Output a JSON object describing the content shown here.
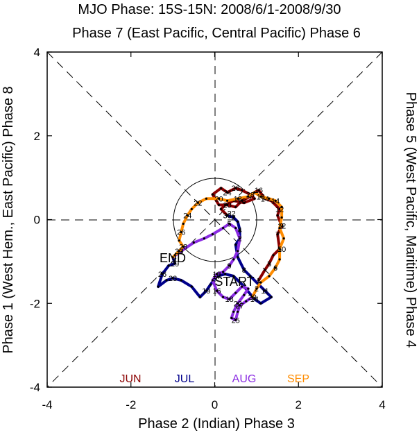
{
  "chart_data": {
    "type": "line",
    "title": "MJO Phase: 15S-15N: 2008/6/1-2008/9/30",
    "top_label": "Phase 7 (East Pacific, Central Pacific) Phase 6",
    "bottom_label": "Phase 2 (Indian) Phase 3",
    "left_label": "Phase 1 (West Hem., East Pacific) Phase 8",
    "right_label": "Phase 5 (West Pacific, Maritime) Phase 4",
    "xlim": [
      -4,
      4
    ],
    "ylim": [
      -4,
      4
    ],
    "x_ticks": [
      "-4",
      "-2",
      "0",
      "2",
      "4"
    ],
    "y_ticks": [
      "-4",
      "-2",
      "0",
      "2",
      "4"
    ],
    "unit_circle_radius": 1,
    "start_label": "START",
    "end_label": "END",
    "series": [
      {
        "name": "JUN",
        "color": "#8b0000",
        "points": [
          [
            1.05,
            -1.45
          ],
          [
            1.2,
            -1.2
          ],
          [
            1.3,
            -1.05
          ],
          [
            1.4,
            -0.85
          ],
          [
            1.55,
            -0.7
          ],
          [
            1.5,
            -0.35
          ],
          [
            1.6,
            -0.15
          ],
          [
            1.5,
            0.1
          ],
          [
            1.55,
            0.25
          ],
          [
            1.35,
            0.45
          ],
          [
            1.2,
            0.5
          ],
          [
            1.05,
            0.7
          ],
          [
            0.95,
            0.65
          ],
          [
            0.85,
            0.55
          ],
          [
            0.65,
            0.45
          ],
          [
            0.5,
            0.3
          ],
          [
            0.3,
            0.35
          ],
          [
            0.1,
            0.35
          ],
          [
            -0.05,
            0.6
          ],
          [
            0.15,
            0.75
          ],
          [
            0.3,
            0.65
          ],
          [
            0.5,
            0.75
          ],
          [
            0.65,
            0.7
          ],
          [
            0.85,
            0.6
          ],
          [
            0.95,
            0.5
          ],
          [
            0.7,
            0.4
          ],
          [
            0.45,
            0.45
          ],
          [
            0.25,
            0.35
          ],
          [
            0.15,
            0.25
          ],
          [
            0.3,
            0.1
          ]
        ],
        "day_labels": [
          [
            1,
            1.05,
            -1.45
          ],
          [
            3,
            1.3,
            -1.05
          ],
          [
            5,
            1.55,
            -0.7
          ],
          [
            7,
            1.5,
            -0.35
          ],
          [
            9,
            1.6,
            -0.15
          ],
          [
            12,
            1.55,
            0.25
          ],
          [
            14,
            1.2,
            0.5
          ],
          [
            16,
            1.05,
            0.7
          ],
          [
            18,
            0.65,
            0.45
          ],
          [
            20,
            0.3,
            0.35
          ],
          [
            22,
            0.4,
            0.15
          ],
          [
            24,
            0.3,
            0.65
          ],
          [
            26,
            0.5,
            0.75
          ],
          [
            28,
            0.85,
            0.6
          ],
          [
            30,
            0.3,
            0.1
          ]
        ]
      },
      {
        "name": "JUL",
        "color": "#00008b",
        "points": [
          [
            0.3,
            0.1
          ],
          [
            0.45,
            0.05
          ],
          [
            0.55,
            -0.05
          ],
          [
            0.6,
            -0.25
          ],
          [
            0.6,
            -0.45
          ],
          [
            0.5,
            -0.6
          ],
          [
            0.55,
            -0.9
          ],
          [
            0.7,
            -1.2
          ],
          [
            0.85,
            -1.35
          ],
          [
            1.05,
            -1.55
          ],
          [
            1.2,
            -1.7
          ],
          [
            1.35,
            -1.85
          ],
          [
            1.1,
            -2.0
          ],
          [
            0.95,
            -1.9
          ],
          [
            0.7,
            -1.6
          ],
          [
            0.45,
            -1.35
          ],
          [
            0.25,
            -1.3
          ],
          [
            0.05,
            -1.35
          ],
          [
            -0.1,
            -1.55
          ],
          [
            -0.2,
            -1.7
          ],
          [
            -0.35,
            -1.85
          ],
          [
            -0.55,
            -1.6
          ],
          [
            -0.8,
            -1.45
          ],
          [
            -1.0,
            -1.4
          ],
          [
            -1.15,
            -1.45
          ],
          [
            -1.35,
            -1.6
          ],
          [
            -1.25,
            -1.3
          ],
          [
            -1.1,
            -1.1
          ],
          [
            -0.95,
            -1.05
          ],
          [
            -1.0,
            -0.9
          ]
        ],
        "day_labels": [
          [
            2,
            0.45,
            0.05
          ],
          [
            4,
            0.6,
            -0.25
          ],
          [
            8,
            0.7,
            -1.2
          ],
          [
            11,
            1.2,
            -1.7
          ],
          [
            14,
            0.95,
            -1.9
          ],
          [
            17,
            0.05,
            -1.35
          ],
          [
            19,
            -0.2,
            -1.7
          ],
          [
            23,
            -1.0,
            -1.4
          ],
          [
            26,
            -1.25,
            -1.3
          ],
          [
            29,
            -0.95,
            -1.05
          ]
        ]
      },
      {
        "name": "AUG",
        "color": "#8a2be2",
        "points": [
          [
            -1.0,
            -0.9
          ],
          [
            -0.8,
            -0.75
          ],
          [
            -0.5,
            -0.55
          ],
          [
            -0.25,
            -0.45
          ],
          [
            -0.05,
            -0.35
          ],
          [
            0.2,
            -0.2
          ],
          [
            0.35,
            -0.1
          ],
          [
            0.5,
            -0.2
          ],
          [
            0.6,
            -0.45
          ],
          [
            0.55,
            -0.75
          ],
          [
            0.45,
            -0.95
          ],
          [
            0.35,
            -1.1
          ],
          [
            0.2,
            -1.25
          ],
          [
            0.05,
            -1.3
          ],
          [
            -0.05,
            -1.45
          ],
          [
            0.05,
            -1.7
          ],
          [
            0.2,
            -1.85
          ],
          [
            0.35,
            -1.9
          ],
          [
            0.5,
            -1.75
          ],
          [
            0.65,
            -1.6
          ],
          [
            0.8,
            -1.65
          ],
          [
            0.7,
            -1.8
          ],
          [
            0.55,
            -2.0
          ],
          [
            0.45,
            -2.2
          ],
          [
            0.4,
            -2.35
          ],
          [
            0.5,
            -2.4
          ],
          [
            0.55,
            -2.2
          ],
          [
            0.6,
            -2.05
          ],
          [
            0.75,
            -1.95
          ],
          [
            0.9,
            -1.85
          ]
        ],
        "day_labels": [
          [
            2,
            0.6,
            -0.45
          ],
          [
            5,
            0.35,
            -0.1
          ],
          [
            9,
            0.35,
            -1.1
          ],
          [
            13,
            0.05,
            -1.3
          ],
          [
            16,
            0.05,
            -1.7
          ],
          [
            18,
            0.35,
            -1.9
          ],
          [
            22,
            0.55,
            -2.0
          ],
          [
            25,
            0.5,
            -2.4
          ],
          [
            27,
            0.6,
            -2.05
          ],
          [
            29,
            0.9,
            -1.85
          ]
        ]
      },
      {
        "name": "SEP",
        "color": "#ff8c00",
        "points": [
          [
            0.9,
            -1.85
          ],
          [
            1.0,
            -1.65
          ],
          [
            1.1,
            -1.5
          ],
          [
            1.3,
            -1.35
          ],
          [
            1.45,
            -1.15
          ],
          [
            1.55,
            -0.95
          ],
          [
            1.55,
            -0.7
          ],
          [
            1.65,
            -0.45
          ],
          [
            1.55,
            -0.2
          ],
          [
            1.6,
            0.05
          ],
          [
            1.6,
            0.3
          ],
          [
            1.45,
            0.45
          ],
          [
            1.3,
            0.5
          ],
          [
            1.1,
            0.55
          ],
          [
            0.95,
            0.65
          ],
          [
            0.8,
            0.55
          ],
          [
            0.55,
            0.5
          ],
          [
            0.3,
            0.45
          ],
          [
            0.1,
            0.5
          ],
          [
            -0.2,
            0.5
          ],
          [
            -0.4,
            0.4
          ],
          [
            -0.55,
            0.25
          ],
          [
            -0.65,
            0.1
          ],
          [
            -0.75,
            -0.1
          ],
          [
            -0.8,
            -0.3
          ],
          [
            -0.85,
            -0.5
          ],
          [
            -0.75,
            -0.65
          ],
          [
            -0.85,
            -0.75
          ],
          [
            -0.95,
            -0.85
          ],
          [
            -1.0,
            -0.9
          ]
        ],
        "day_labels": [
          [
            2,
            1.0,
            -1.65
          ],
          [
            6,
            1.45,
            -1.15
          ],
          [
            10,
            1.6,
            -0.7
          ],
          [
            12,
            1.6,
            -0.15
          ],
          [
            14,
            1.45,
            0.45
          ],
          [
            16,
            1.1,
            0.55
          ],
          [
            18,
            0.55,
            0.5
          ],
          [
            20,
            0.1,
            0.5
          ],
          [
            22,
            -0.4,
            0.4
          ],
          [
            24,
            -0.65,
            0.1
          ],
          [
            26,
            -0.8,
            -0.3
          ],
          [
            28,
            -0.75,
            -0.65
          ],
          [
            30,
            -0.85,
            -0.75
          ]
        ]
      }
    ]
  }
}
